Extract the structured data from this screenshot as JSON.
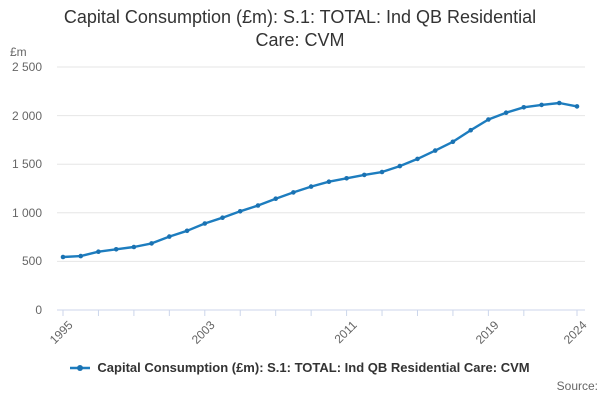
{
  "header": {
    "title": "Capital Consumption (£m): S.1: TOTAL: Ind QB Residential Care: CVM"
  },
  "y_axis": {
    "unit_label": "£m"
  },
  "legend": {
    "label": "Capital Consumption (£m): S.1: TOTAL: Ind QB Residential Care: CVM",
    "marker": "line-dot-icon"
  },
  "footer": {
    "source_label": "Source:"
  },
  "colors": {
    "series_line": "#1d7dbf",
    "series_marker": "#1a72b2",
    "gridline": "#e6e6e6",
    "axis_line": "#ccd6eb",
    "text_muted": "#666666",
    "text_dark": "#333333"
  },
  "chart_data": {
    "type": "line",
    "title": "Capital Consumption (£m): S.1: TOTAL: Ind QB Residential Care: CVM",
    "xlabel": "",
    "ylabel": "£m",
    "ylim": [
      0,
      2500
    ],
    "xlim": [
      1995,
      2024
    ],
    "grid": "horizontal-only",
    "legend_position": "bottom-center",
    "x": [
      1995,
      1996,
      1997,
      1998,
      1999,
      2000,
      2001,
      2002,
      2003,
      2004,
      2005,
      2006,
      2007,
      2008,
      2009,
      2010,
      2011,
      2012,
      2013,
      2014,
      2015,
      2016,
      2017,
      2018,
      2019,
      2020,
      2021,
      2022,
      2023,
      2024
    ],
    "series": [
      {
        "name": "Capital Consumption (£m): S.1: TOTAL: Ind QB Residential Care: CVM",
        "color": "#1d7dbf",
        "values": [
          545,
          555,
          600,
          625,
          648,
          685,
          755,
          815,
          890,
          950,
          1015,
          1075,
          1145,
          1210,
          1270,
          1320,
          1355,
          1390,
          1420,
          1480,
          1555,
          1640,
          1730,
          1850,
          1960,
          2030,
          2085,
          2110,
          2130,
          2095
        ]
      }
    ],
    "y_ticks": [
      {
        "value": 0,
        "label": "0"
      },
      {
        "value": 500,
        "label": "500"
      },
      {
        "value": 1000,
        "label": "1 000"
      },
      {
        "value": 1500,
        "label": "1 500"
      },
      {
        "value": 2000,
        "label": "2 000"
      },
      {
        "value": 2500,
        "label": "2 500"
      }
    ],
    "x_tick_years": [
      1995,
      1997,
      1999,
      2001,
      2003,
      2005,
      2007,
      2009,
      2011,
      2013,
      2015,
      2017,
      2019,
      2021,
      2024
    ],
    "x_label_years": [
      1995,
      2003,
      2011,
      2019,
      2024
    ]
  }
}
